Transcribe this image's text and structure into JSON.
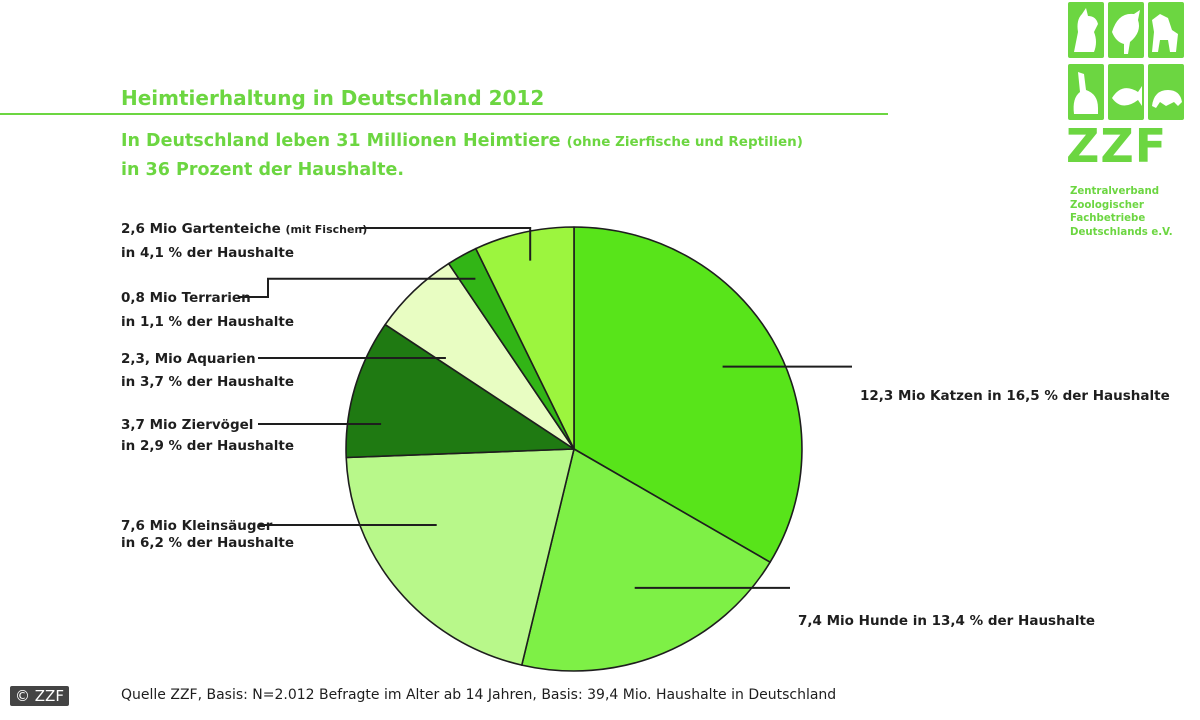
{
  "header": {
    "title": "Heimtierhaltung in Deutschland 2012",
    "subtitle_main": "In Deutschland leben 31 Millionen Heimtiere",
    "subtitle_note": "(ohne Zierfische und Reptilien)",
    "subtitle_line2": "in 36 Prozent der Haushalte."
  },
  "logo": {
    "word": "ZZF",
    "lines": [
      "Zentralverband",
      "Zoologischer",
      "Fachbetriebe",
      "Deutschlands e.V."
    ],
    "icon_names": [
      "cat-icon",
      "bird-icon",
      "dog-icon",
      "rabbit-icon",
      "fish-icon",
      "turtle-icon"
    ]
  },
  "colors": {
    "brand_green": "#6cd641",
    "outline": "#1e1e1e"
  },
  "chart_data": {
    "type": "pie",
    "unit": "Mio",
    "series": [
      {
        "label_line1": "12,3 Mio Katzen in 16,5 % der Haushalte",
        "label_line2": "",
        "note": "",
        "value": 12.3,
        "households_pct": 16.5,
        "color": "#58e41a"
      },
      {
        "label_line1": "7,4 Mio Hunde in 13,4 % der Haushalte",
        "label_line2": "",
        "note": "",
        "value": 7.4,
        "households_pct": 13.4,
        "color": "#7ef046"
      },
      {
        "label_line1": "7,6 Mio Kleinsäuger",
        "label_line2": "in 6,2 % der Haushalte",
        "note": "",
        "value": 7.6,
        "households_pct": 6.2,
        "color": "#b8f88a"
      },
      {
        "label_line1": "3,7 Mio Ziervögel",
        "label_line2": "in 2,9 % der Haushalte",
        "note": "",
        "value": 3.7,
        "households_pct": 2.9,
        "color": "#1f7a12"
      },
      {
        "label_line1": "2,3, Mio Aquarien",
        "label_line2": "in 3,7 % der Haushalte",
        "note": "",
        "value": 2.3,
        "households_pct": 3.7,
        "color": "#e8fdc2"
      },
      {
        "label_line1": "0,8 Mio Terrarien",
        "label_line2": "in 1,1 % der Haushalte",
        "note": "",
        "value": 0.8,
        "households_pct": 1.1,
        "color": "#32b516"
      },
      {
        "label_line1": "2,6 Mio Gartenteiche",
        "label_line2": "in 4,1 % der Haushalte",
        "note": "(mit Fischen)",
        "value": 2.6,
        "households_pct": 4.1,
        "color": "#9cf53e"
      }
    ]
  },
  "footer": {
    "source": "Quelle ZZF, Basis: N=2.012 Befragte im Alter ab 14 Jahren, Basis: 39,4 Mio. Haushalte in Deutschland",
    "copyright": "© ZZF"
  }
}
